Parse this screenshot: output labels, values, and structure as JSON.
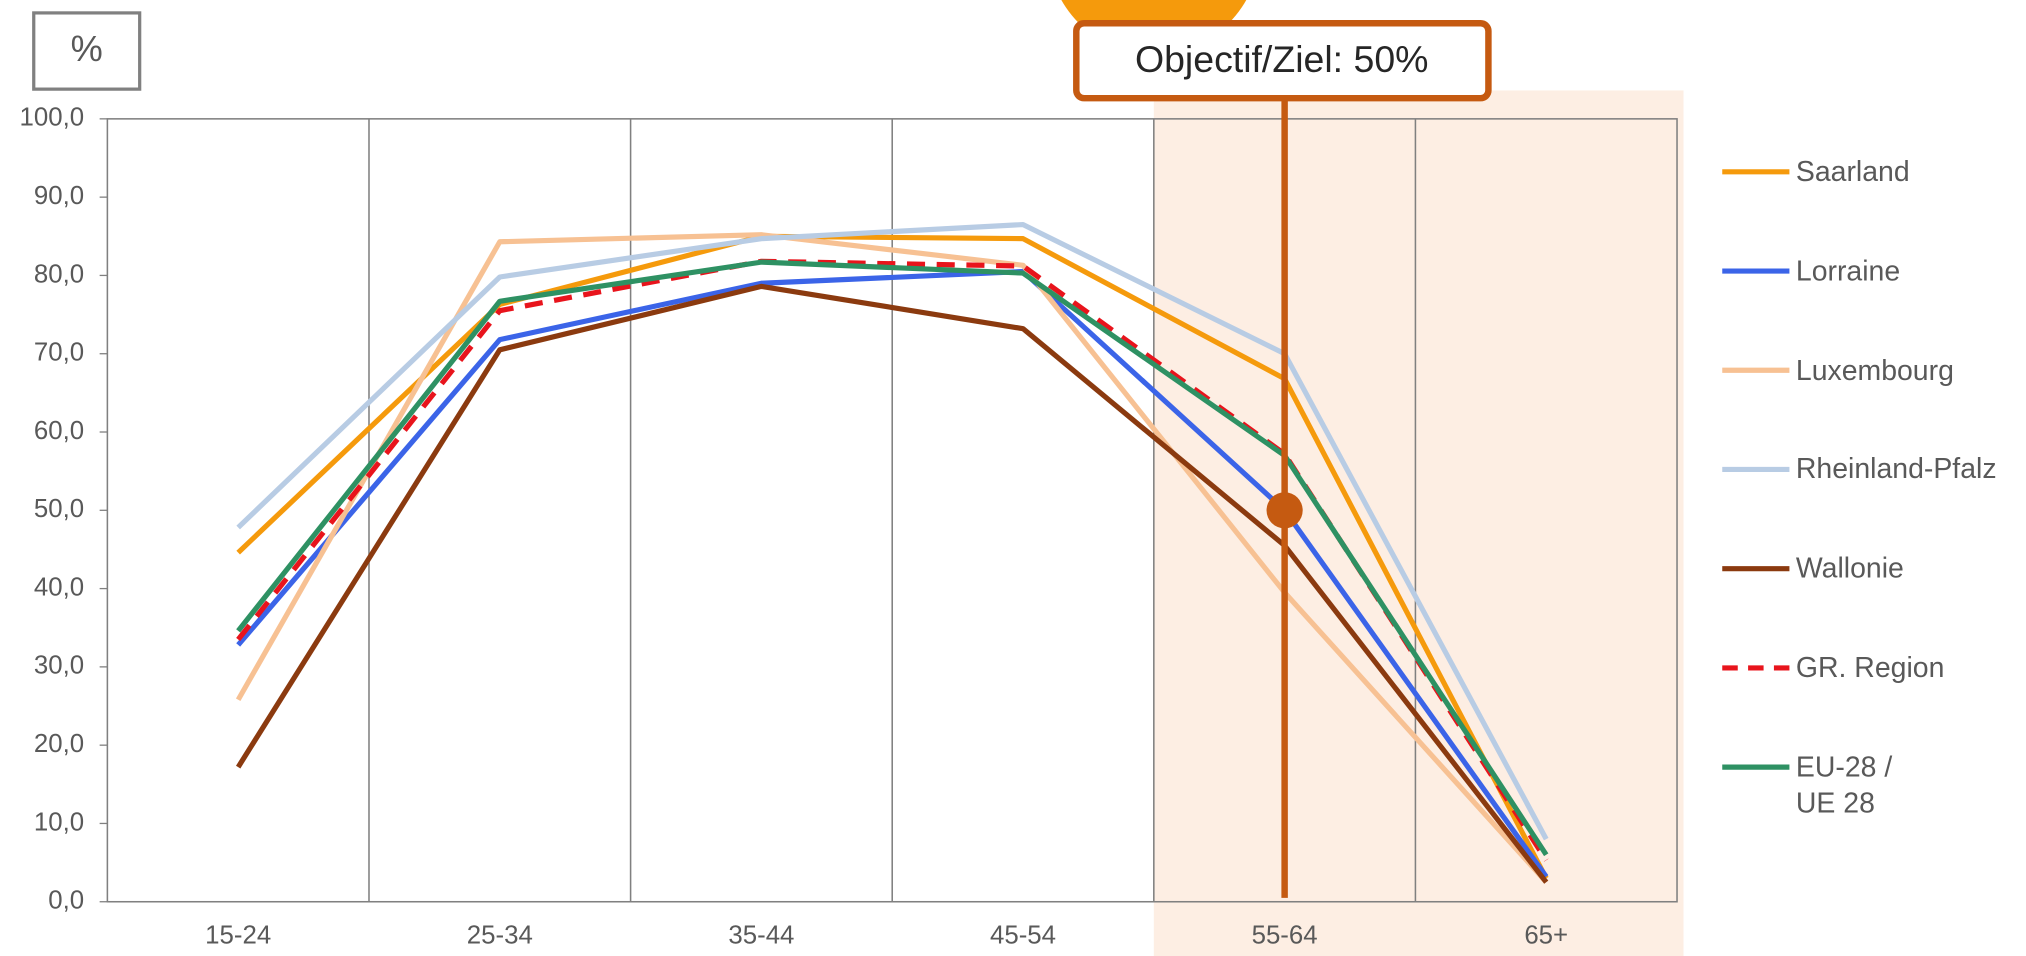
{
  "chart_data": {
    "type": "line",
    "y_label": "%",
    "categories": [
      "15-24",
      "25-34",
      "35-44",
      "45-54",
      "55-64",
      "65+"
    ],
    "series": [
      {
        "name": "Saarland",
        "color": "#f59a0c",
        "values": [
          44.6,
          76.3,
          85.0,
          84.7,
          66.8,
          3.0
        ]
      },
      {
        "name": "Lorraine",
        "color": "#3b64e8",
        "values": [
          32.8,
          71.8,
          79.0,
          80.5,
          50.0,
          3.2
        ]
      },
      {
        "name": "Luxembourg",
        "color": "#f7c193",
        "values": [
          25.8,
          84.3,
          85.2,
          81.3,
          39.5,
          2.5
        ]
      },
      {
        "name": "Rheinland-Pfalz",
        "color": "#b8cce4",
        "values": [
          47.8,
          79.8,
          84.7,
          86.5,
          70.0,
          8.0
        ]
      },
      {
        "name": "Wallonie",
        "color": "#8b3a0f",
        "values": [
          17.2,
          70.5,
          78.6,
          73.2,
          45.5,
          2.5
        ]
      },
      {
        "name": "GR. Region",
        "color": "#e8141c",
        "dashed": true,
        "values": [
          33.5,
          75.5,
          81.8,
          81.2,
          57.2,
          5.3
        ]
      },
      {
        "name": "EU-28 / UE 28",
        "color": "#2e9163",
        "values": [
          34.6,
          76.7,
          81.7,
          80.3,
          57.0,
          6.0
        ]
      }
    ],
    "ylim": [
      0,
      100
    ],
    "yticks": [
      {
        "value": 0,
        "label": "0,0"
      },
      {
        "value": 10,
        "label": "10,0"
      },
      {
        "value": 20,
        "label": "20,0"
      },
      {
        "value": 30,
        "label": "30,0"
      },
      {
        "value": 40,
        "label": "40,0"
      },
      {
        "value": 50,
        "label": "50,0"
      },
      {
        "value": 60,
        "label": "60,0"
      },
      {
        "value": 70,
        "label": "70,0"
      },
      {
        "value": 80,
        "label": "80,0"
      },
      {
        "value": 90,
        "label": "90,0"
      },
      {
        "value": 100,
        "label": "100,0"
      }
    ],
    "highlight": [
      "55-64",
      "65+"
    ],
    "annotation": {
      "text": "Objectif/Ziel: 50%",
      "value": 50,
      "category": "55-64"
    },
    "legend": "right"
  }
}
